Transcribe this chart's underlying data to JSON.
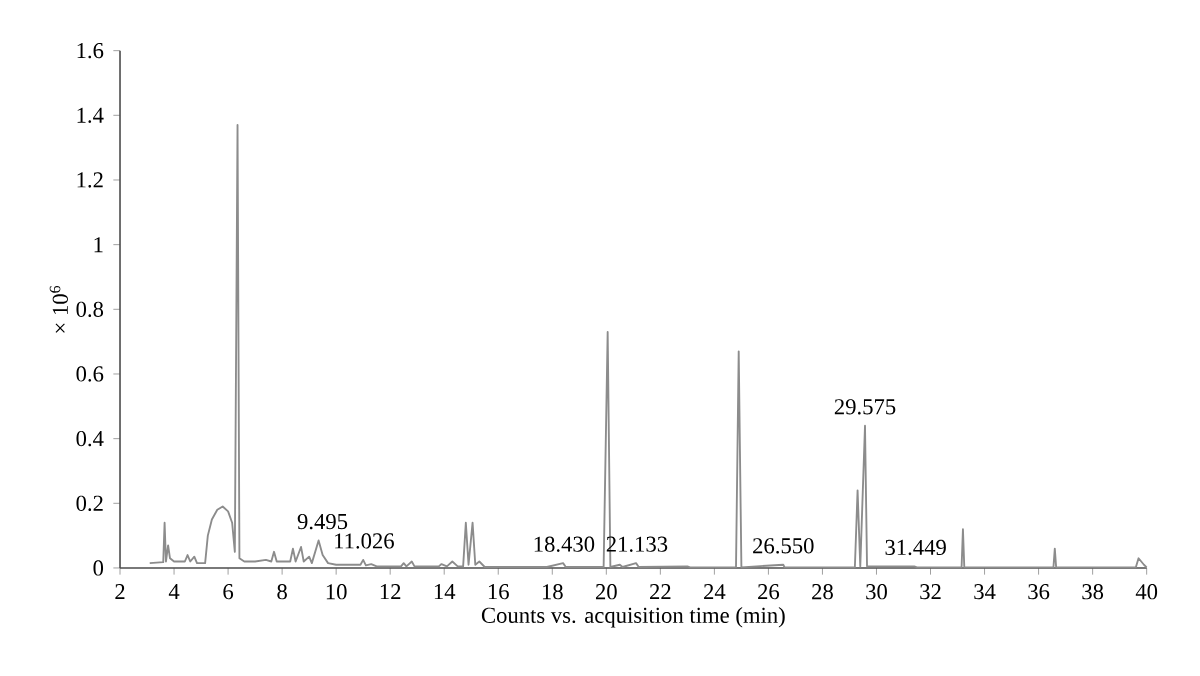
{
  "chart_data": {
    "type": "line",
    "xlabel": "Counts vs. acquisition time (min)",
    "ylabel": "× 10$^{6}$",
    "xlim": [
      2,
      40
    ],
    "ylim": [
      0,
      1.6
    ],
    "xticks": [
      2,
      4,
      6,
      8,
      10,
      12,
      14,
      16,
      18,
      20,
      22,
      24,
      26,
      28,
      30,
      32,
      34,
      36,
      38,
      40
    ],
    "yticks": [
      0,
      0.2,
      0.4,
      0.6,
      0.8,
      1,
      1.2,
      1.4,
      1.6
    ],
    "color": "#8c8c8c",
    "x": [
      3.1,
      3.6,
      3.65,
      3.7,
      3.78,
      3.85,
      4.0,
      4.4,
      4.5,
      4.6,
      4.75,
      4.85,
      5.15,
      5.25,
      5.4,
      5.6,
      5.8,
      6.0,
      6.15,
      6.25,
      6.35,
      6.42,
      6.6,
      7.0,
      7.4,
      7.6,
      7.7,
      7.8,
      8.3,
      8.4,
      8.5,
      8.7,
      8.8,
      9.0,
      9.1,
      9.35,
      9.5,
      9.7,
      10.0,
      10.9,
      11.0,
      11.1,
      11.3,
      11.5,
      12.4,
      12.5,
      12.6,
      12.8,
      12.9,
      13.8,
      13.9,
      14.1,
      14.3,
      14.5,
      14.7,
      14.8,
      14.9,
      15.05,
      15.15,
      15.3,
      15.5,
      17.8,
      18.4,
      18.5,
      19.9,
      20.05,
      20.15,
      20.5,
      20.6,
      21.1,
      21.2,
      23.0,
      23.1,
      24.8,
      24.9,
      25.0,
      26.55,
      26.6,
      29.2,
      29.3,
      29.4,
      29.575,
      29.65,
      31.4,
      31.5,
      33.15,
      33.2,
      33.25,
      36.55,
      36.6,
      36.65,
      39.6,
      39.7,
      39.8,
      39.9,
      40
    ],
    "values": [
      0.015,
      0.018,
      0.14,
      0.02,
      0.07,
      0.03,
      0.02,
      0.02,
      0.04,
      0.02,
      0.035,
      0.015,
      0.015,
      0.1,
      0.15,
      0.18,
      0.19,
      0.175,
      0.14,
      0.05,
      1.37,
      0.03,
      0.02,
      0.02,
      0.025,
      0.02,
      0.05,
      0.02,
      0.02,
      0.06,
      0.02,
      0.065,
      0.02,
      0.035,
      0.015,
      0.085,
      0.04,
      0.015,
      0.01,
      0.01,
      0.025,
      0.008,
      0.012,
      0.005,
      0.005,
      0.015,
      0.005,
      0.02,
      0.005,
      0.005,
      0.012,
      0.005,
      0.02,
      0.005,
      0.005,
      0.14,
      0.01,
      0.14,
      0.01,
      0.02,
      0.003,
      0.003,
      0.015,
      0.003,
      0.003,
      0.73,
      0.003,
      0.01,
      0.003,
      0.015,
      0.003,
      0.005,
      0.002,
      0.002,
      0.67,
      0.002,
      0.01,
      0.002,
      0.002,
      0.24,
      0.005,
      0.44,
      0.005,
      0.005,
      0.002,
      0.002,
      0.12,
      0.002,
      0.002,
      0.06,
      0.002,
      0.002,
      0.03,
      0.02,
      0.01,
      0.002
    ],
    "annotations": [
      {
        "text": "9.495",
        "x": 9.495,
        "y": 0.085
      },
      {
        "text": "11.026",
        "x": 11.026,
        "y": 0.025
      },
      {
        "text": "18.430",
        "x": 18.43,
        "y": 0.015
      },
      {
        "text": "21.133",
        "x": 21.133,
        "y": 0.015
      },
      {
        "text": "26.550",
        "x": 26.55,
        "y": 0.01
      },
      {
        "text": "29.575",
        "x": 29.575,
        "y": 0.44
      },
      {
        "text": "31.449",
        "x": 31.449,
        "y": 0.005
      }
    ]
  }
}
